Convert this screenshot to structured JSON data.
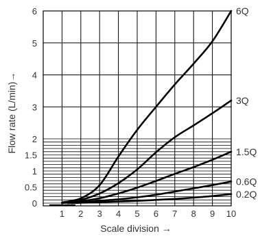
{
  "chart_data": {
    "type": "line",
    "xlabel": "Scale division →",
    "ylabel": "Flow rate (L/min)→",
    "xlim": [
      0,
      10
    ],
    "ylim": [
      0,
      6
    ],
    "y_scale": "piecewise: finely graduated from 0 to 2, coarse from 2 to 6",
    "x_ticks": [
      "1",
      "2",
      "3",
      "4",
      "5",
      "6",
      "7",
      "8",
      "9",
      "10"
    ],
    "y_ticks": [
      "0",
      "0.5",
      "1",
      "1.5",
      "2",
      "3",
      "4",
      "5",
      "6"
    ],
    "grid": true,
    "series": [
      {
        "name": "6Q",
        "x": [
          1.0,
          2.0,
          3.0,
          4.0,
          5.0,
          6.0,
          7.0,
          8.0,
          9.0,
          10.0
        ],
        "y": [
          0.02,
          0.15,
          0.56,
          1.45,
          2.28,
          3.0,
          3.7,
          4.35,
          5.05,
          6.0
        ]
      },
      {
        "name": "3Q",
        "x": [
          1.0,
          2.0,
          3.0,
          4.0,
          5.0,
          6.0,
          7.0,
          8.0,
          9.0,
          10.0
        ],
        "y": [
          0.01,
          0.1,
          0.3,
          0.62,
          1.05,
          1.58,
          2.05,
          2.42,
          2.8,
          3.2
        ]
      },
      {
        "name": "1.5Q",
        "x": [
          1.0,
          2.0,
          3.0,
          4.0,
          5.0,
          6.0,
          7.0,
          8.0,
          9.0,
          10.0
        ],
        "y": [
          0.0,
          0.06,
          0.15,
          0.3,
          0.48,
          0.69,
          0.91,
          1.12,
          1.35,
          1.6
        ]
      },
      {
        "name": "0.6Q",
        "x": [
          1.3,
          2.0,
          3.0,
          4.0,
          5.0,
          6.0,
          7.0,
          8.0,
          9.0,
          10.0
        ],
        "y": [
          0.0,
          0.03,
          0.07,
          0.12,
          0.18,
          0.26,
          0.36,
          0.46,
          0.56,
          0.67
        ]
      },
      {
        "name": "0.2Q",
        "x": [
          1.5,
          2.0,
          3.0,
          4.0,
          5.0,
          6.0,
          7.0,
          8.0,
          9.0,
          10.0
        ],
        "y": [
          0.0,
          0.01,
          0.03,
          0.05,
          0.07,
          0.1,
          0.13,
          0.17,
          0.22,
          0.28
        ]
      }
    ]
  }
}
